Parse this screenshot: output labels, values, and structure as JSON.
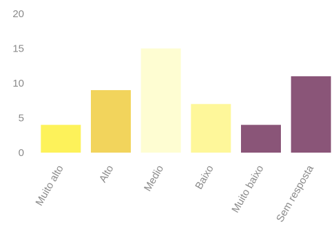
{
  "chart_data": {
    "type": "bar",
    "categories": [
      "Muito alto",
      "Alto",
      "Medio",
      "Baixo",
      "Muito baixo",
      "Sem resposta"
    ],
    "values": [
      4,
      9,
      15,
      7,
      4,
      11
    ],
    "colors": [
      "#FDF25A",
      "#F2D45C",
      "#FEFDD2",
      "#FEF79A",
      "#8A5578",
      "#8A5578"
    ],
    "ylim": [
      0,
      20
    ],
    "yticks": [
      0,
      5,
      10,
      15,
      20
    ],
    "grid": false,
    "legend": "none",
    "title": "",
    "xlabel": "",
    "ylabel": ""
  }
}
